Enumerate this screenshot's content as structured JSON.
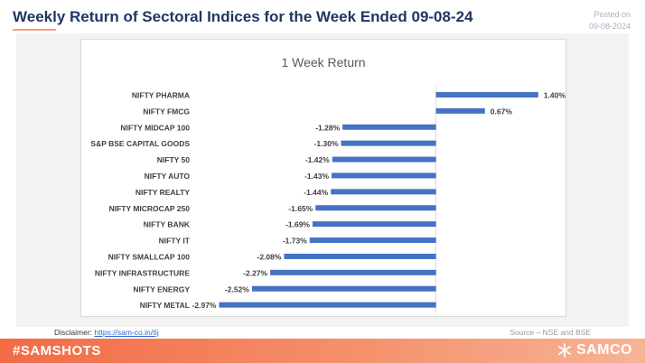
{
  "header": {
    "title": "Weekly Return of Sectoral Indices for the Week Ended 09-08-24",
    "posted_label": "Posted on",
    "posted_date": "09-08-2024"
  },
  "chart_data": {
    "type": "bar",
    "orientation": "horizontal",
    "title": "1 Week Return",
    "xlabel": "",
    "ylabel": "",
    "categories": [
      "NIFTY PHARMA",
      "NIFTY FMCG",
      "NIFTY MIDCAP 100",
      "S&P BSE CAPITAL GOODS",
      "NIFTY 50",
      "NIFTY AUTO",
      "NIFTY REALTY",
      "NIFTY MICROCAP 250",
      "NIFTY BANK",
      "NIFTY IT",
      "NIFTY SMALLCAP 100",
      "NIFTY INFRASTRUCTURE",
      "NIFTY ENERGY",
      "NIFTY METAL"
    ],
    "values": [
      1.4,
      0.67,
      -1.28,
      -1.3,
      -1.42,
      -1.43,
      -1.44,
      -1.65,
      -1.69,
      -1.73,
      -2.08,
      -2.27,
      -2.52,
      -2.97
    ],
    "value_labels": [
      "1.40%",
      "0.67%",
      "-1.28%",
      "-1.30%",
      "-1.42%",
      "-1.43%",
      "-1.44%",
      "-1.65%",
      "-1.69%",
      "-1.73%",
      "-2.08%",
      "-2.27%",
      "-2.52%",
      "-2.97%"
    ],
    "xlim": [
      -3.1,
      1.6
    ],
    "bar_color": "#4472c4",
    "grid": false,
    "legend": "none"
  },
  "footer": {
    "disclaimer_label": "Disclaimer:",
    "disclaimer_link": "https://sam-co.in/6j",
    "source": "Source – NSE and BSE"
  },
  "bottom_bar": {
    "hashtag": "#SAMSHOTS",
    "brand": "SAMCO",
    "brand_logo_icon": "samco-logo-icon"
  }
}
